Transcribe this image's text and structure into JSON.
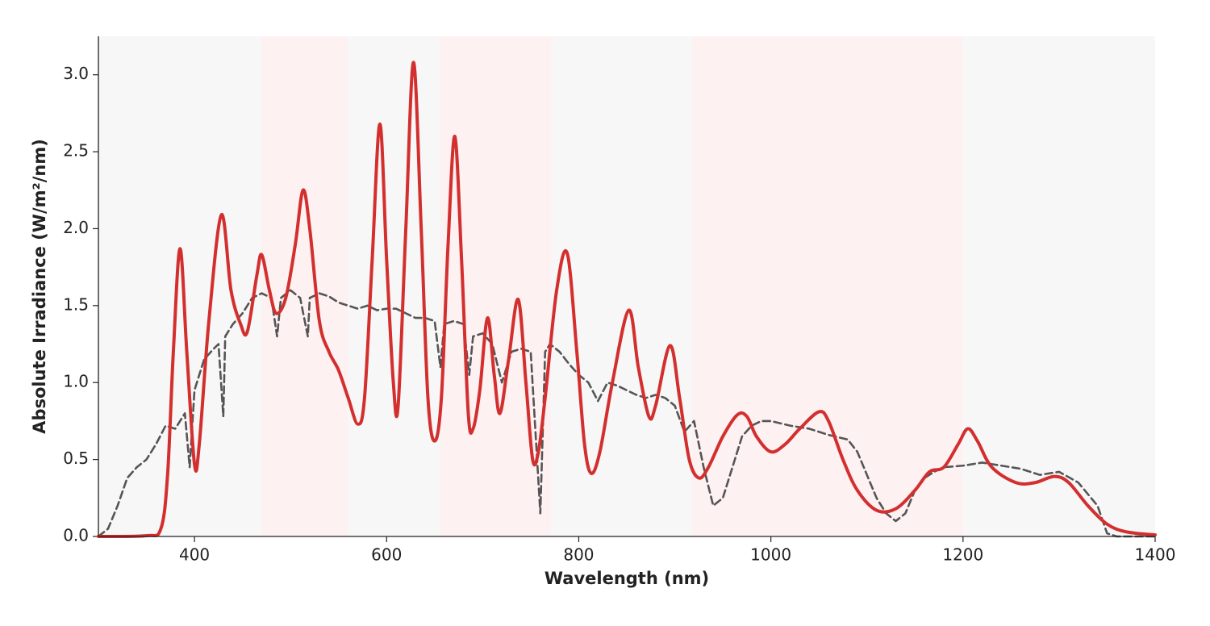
{
  "chart_data": {
    "type": "line",
    "xlabel": "Wavelength (nm)",
    "ylabel": "Absolute Irradiance (W/m²/nm)",
    "xlim": [
      300,
      1400
    ],
    "ylim": [
      0,
      3.25
    ],
    "xticks": [
      400,
      600,
      800,
      1000,
      1200,
      1400
    ],
    "yticks": [
      {
        "value": 0,
        "label": "0.0"
      },
      0.5,
      {
        "value": 1,
        "label": "1.0"
      },
      1.5,
      {
        "value": 2,
        "label": "2.0"
      },
      2.5,
      {
        "value": 3,
        "label": "3.0"
      }
    ],
    "regions": [
      {
        "start": 300,
        "end": 470,
        "color": "#f7f7f7"
      },
      {
        "start": 470,
        "end": 560,
        "color": "#fdf1f2"
      },
      {
        "start": 560,
        "end": 656,
        "color": "#f7f7f7"
      },
      {
        "start": 656,
        "end": 771,
        "color": "#fdf1f2"
      },
      {
        "start": 771,
        "end": 918,
        "color": "#f7f7f7"
      },
      {
        "start": 918,
        "end": 1200,
        "color": "#fdf1f2"
      },
      {
        "start": 1200,
        "end": 1400,
        "color": "#f7f7f7"
      }
    ],
    "series": [
      {
        "color": "#555555",
        "line_style": "dashed",
        "x": [
          300,
          310,
          320,
          330,
          340,
          350,
          360,
          370,
          380,
          390,
          395,
          400,
          410,
          420,
          425,
          430,
          432,
          440,
          450,
          460,
          470,
          480,
          486,
          490,
          500,
          510,
          518,
          520,
          530,
          540,
          550,
          560,
          570,
          580,
          590,
          600,
          610,
          620,
          630,
          640,
          650,
          656,
          660,
          670,
          680,
          686,
          690,
          700,
          710,
          720,
          730,
          740,
          750,
          760,
          765,
          770,
          780,
          790,
          800,
          810,
          820,
          830,
          840,
          850,
          860,
          870,
          880,
          890,
          900,
          910,
          920,
          930,
          940,
          950,
          960,
          970,
          980,
          990,
          1000,
          1020,
          1040,
          1060,
          1080,
          1090,
          1100,
          1110,
          1120,
          1130,
          1140,
          1150,
          1160,
          1170,
          1180,
          1200,
          1220,
          1240,
          1260,
          1280,
          1300,
          1320,
          1340,
          1350,
          1360,
          1400
        ],
        "values": [
          0,
          0.05,
          0.2,
          0.38,
          0.45,
          0.5,
          0.6,
          0.72,
          0.7,
          0.8,
          0.45,
          0.95,
          1.15,
          1.22,
          1.25,
          0.78,
          1.3,
          1.38,
          1.45,
          1.55,
          1.58,
          1.55,
          1.3,
          1.55,
          1.6,
          1.55,
          1.3,
          1.55,
          1.58,
          1.56,
          1.52,
          1.5,
          1.48,
          1.5,
          1.47,
          1.48,
          1.48,
          1.45,
          1.42,
          1.42,
          1.4,
          1.1,
          1.38,
          1.4,
          1.38,
          1.05,
          1.3,
          1.32,
          1.25,
          1.0,
          1.2,
          1.22,
          1.2,
          0.15,
          1.2,
          1.25,
          1.2,
          1.12,
          1.05,
          1.0,
          0.88,
          1.0,
          0.98,
          0.95,
          0.92,
          0.9,
          0.92,
          0.9,
          0.85,
          0.68,
          0.75,
          0.45,
          0.2,
          0.25,
          0.45,
          0.65,
          0.72,
          0.75,
          0.75,
          0.72,
          0.7,
          0.66,
          0.63,
          0.55,
          0.4,
          0.25,
          0.15,
          0.1,
          0.15,
          0.3,
          0.38,
          0.42,
          0.45,
          0.46,
          0.48,
          0.46,
          0.44,
          0.4,
          0.42,
          0.35,
          0.2,
          0.02,
          0,
          0
        ]
      },
      {
        "color": "#d32f2f",
        "line_style": "solid",
        "x": [
          300,
          350,
          365,
          372,
          378,
          385,
          392,
          400,
          405,
          415,
          428,
          438,
          448,
          455,
          465,
          470,
          478,
          485,
          495,
          505,
          513,
          520,
          530,
          540,
          550,
          560,
          570,
          577,
          585,
          593,
          600,
          607,
          612,
          620,
          628,
          636,
          643,
          650,
          657,
          664,
          671,
          678,
          685,
          690,
          697,
          705,
          712,
          718,
          727,
          737,
          745,
          752,
          758,
          765,
          777,
          788,
          798,
          806,
          813,
          822,
          835,
          852,
          862,
          873,
          880,
          895,
          905,
          915,
          925,
          935,
          950,
          965,
          975,
          985,
          1000,
          1015,
          1030,
          1050,
          1060,
          1075,
          1090,
          1110,
          1130,
          1150,
          1165,
          1180,
          1195,
          1205,
          1215,
          1230,
          1255,
          1275,
          1295,
          1310,
          1330,
          1350,
          1370,
          1400
        ],
        "values": [
          0,
          0.005,
          0.05,
          0.4,
          1.2,
          1.87,
          1.2,
          0.47,
          0.6,
          1.4,
          2.09,
          1.6,
          1.38,
          1.33,
          1.7,
          1.83,
          1.6,
          1.45,
          1.55,
          1.9,
          2.25,
          2.0,
          1.4,
          1.2,
          1.08,
          0.9,
          0.73,
          0.9,
          1.8,
          2.68,
          1.8,
          1.0,
          0.85,
          2.0,
          3.08,
          2.0,
          0.9,
          0.62,
          0.9,
          1.9,
          2.6,
          1.8,
          0.8,
          0.7,
          0.95,
          1.42,
          1.05,
          0.8,
          1.15,
          1.54,
          1.0,
          0.5,
          0.55,
          0.9,
          1.6,
          1.84,
          1.2,
          0.6,
          0.41,
          0.55,
          1.0,
          1.47,
          1.1,
          0.78,
          0.85,
          1.24,
          0.9,
          0.5,
          0.38,
          0.45,
          0.65,
          0.79,
          0.78,
          0.65,
          0.55,
          0.6,
          0.7,
          0.81,
          0.75,
          0.5,
          0.3,
          0.17,
          0.18,
          0.3,
          0.42,
          0.45,
          0.6,
          0.7,
          0.62,
          0.45,
          0.35,
          0.35,
          0.39,
          0.35,
          0.2,
          0.08,
          0.03,
          0.01
        ]
      }
    ]
  }
}
